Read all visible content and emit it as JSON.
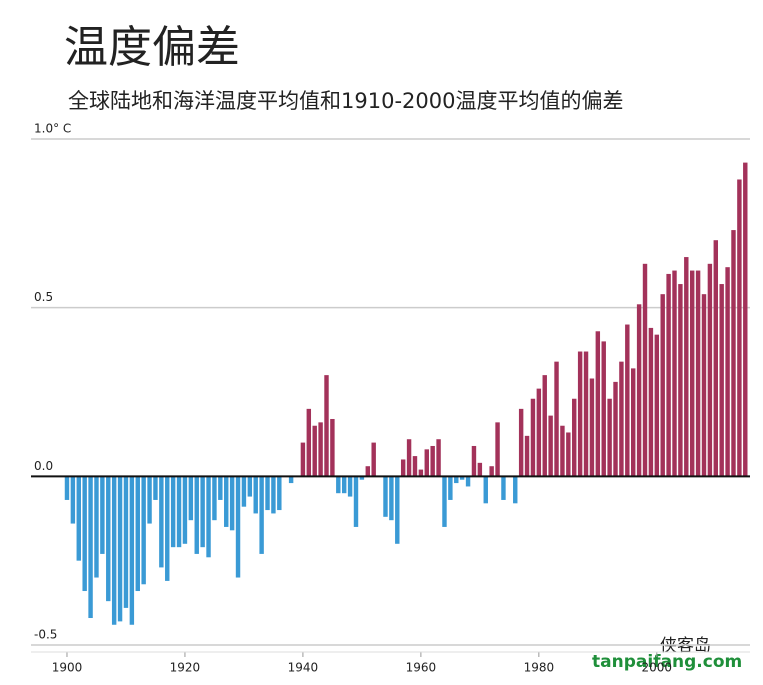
{
  "chart_data": {
    "type": "bar",
    "title": "温度偏差",
    "subtitle": "全球陆地和海洋温度平均值和1910-2000温度平均值的偏差",
    "x": [
      1900,
      1901,
      1902,
      1903,
      1904,
      1905,
      1906,
      1907,
      1908,
      1909,
      1910,
      1911,
      1912,
      1913,
      1914,
      1915,
      1916,
      1917,
      1918,
      1919,
      1920,
      1921,
      1922,
      1923,
      1924,
      1925,
      1926,
      1927,
      1928,
      1929,
      1930,
      1931,
      1932,
      1933,
      1934,
      1935,
      1936,
      1937,
      1938,
      1939,
      1940,
      1941,
      1942,
      1943,
      1944,
      1945,
      1946,
      1947,
      1948,
      1949,
      1950,
      1951,
      1952,
      1953,
      1954,
      1955,
      1956,
      1957,
      1958,
      1959,
      1960,
      1961,
      1962,
      1963,
      1964,
      1965,
      1966,
      1967,
      1968,
      1969,
      1970,
      1971,
      1972,
      1973,
      1974,
      1975,
      1976,
      1977,
      1978,
      1979,
      1980,
      1981,
      1982,
      1983,
      1984,
      1985,
      1986,
      1987,
      1988,
      1989,
      1990,
      1991,
      1992,
      1993,
      1994,
      1995,
      1996,
      1997,
      1998,
      1999,
      2000,
      2001,
      2002,
      2003,
      2004,
      2005,
      2006,
      2007,
      2008,
      2009,
      2010,
      2011,
      2012,
      2013,
      2014,
      2015
    ],
    "values": [
      -0.07,
      -0.14,
      -0.25,
      -0.34,
      -0.42,
      -0.3,
      -0.23,
      -0.37,
      -0.44,
      -0.43,
      -0.39,
      -0.44,
      -0.34,
      -0.32,
      -0.14,
      -0.07,
      -0.27,
      -0.31,
      -0.21,
      -0.21,
      -0.2,
      -0.13,
      -0.23,
      -0.21,
      -0.24,
      -0.13,
      -0.07,
      -0.15,
      -0.16,
      -0.3,
      -0.09,
      -0.06,
      -0.11,
      -0.23,
      -0.1,
      -0.11,
      -0.1,
      0.0,
      -0.02,
      0.0,
      0.1,
      0.2,
      0.15,
      0.16,
      0.3,
      0.17,
      -0.05,
      -0.05,
      -0.06,
      -0.15,
      -0.01,
      0.03,
      0.1,
      0.0,
      -0.12,
      -0.13,
      -0.2,
      0.05,
      0.11,
      0.06,
      0.02,
      0.08,
      0.09,
      0.11,
      -0.15,
      -0.07,
      -0.02,
      -0.01,
      -0.03,
      0.09,
      0.04,
      -0.08,
      0.03,
      0.16,
      -0.07,
      0.0,
      -0.08,
      0.2,
      0.12,
      0.23,
      0.26,
      0.3,
      0.18,
      0.34,
      0.15,
      0.13,
      0.23,
      0.37,
      0.37,
      0.29,
      0.43,
      0.4,
      0.23,
      0.28,
      0.34,
      0.45,
      0.32,
      0.51,
      0.63,
      0.44,
      0.42,
      0.54,
      0.6,
      0.61,
      0.57,
      0.65,
      0.61,
      0.61,
      0.54,
      0.63,
      0.7,
      0.57,
      0.62,
      0.73,
      0.88,
      0.93
    ],
    "positive_color": "#a3325a",
    "negative_color": "#3a9ad5",
    "xlim": [
      1893.9,
      2015.8
    ],
    "xticks": [
      1900,
      1920,
      1940,
      1960,
      1980,
      2000
    ],
    "ylim": [
      -0.5,
      1.0
    ],
    "yticks": [
      {
        "value": -0.5,
        "label": "-0.5"
      },
      {
        "value": 0,
        "label": "0.0"
      },
      0.5,
      {
        "value": 1.0,
        "label": "1.0° C"
      }
    ],
    "grid": true,
    "watermarks": [
      "侠客岛",
      "tanpaifang.com"
    ]
  }
}
